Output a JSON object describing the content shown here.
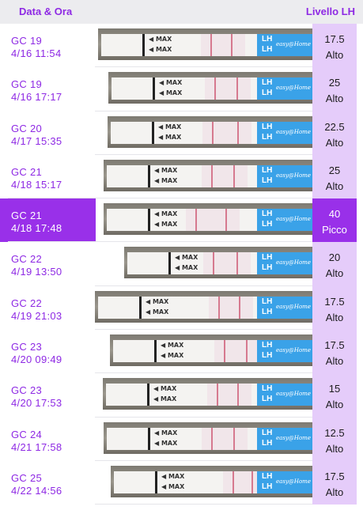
{
  "header": {
    "date_col": "Data & Ora",
    "lh_col": "Livello LH"
  },
  "strip_text": {
    "max": "MAX",
    "lh": "LH",
    "brand": "easy@Home"
  },
  "rows": [
    {
      "cycle_day": "GC 19",
      "datetime": "4/16 11:54",
      "value": "17.5",
      "status": "Alto",
      "selected": false
    },
    {
      "cycle_day": "GC 19",
      "datetime": "4/16 17:17",
      "value": "25",
      "status": "Alto",
      "selected": false
    },
    {
      "cycle_day": "GC 20",
      "datetime": "4/17 15:35",
      "value": "22.5",
      "status": "Alto",
      "selected": false
    },
    {
      "cycle_day": "GC 21",
      "datetime": "4/18 15:17",
      "value": "25",
      "status": "Alto",
      "selected": false
    },
    {
      "cycle_day": "GC 21",
      "datetime": "4/18 17:48",
      "value": "40",
      "status": "Picco",
      "selected": true
    },
    {
      "cycle_day": "GC 22",
      "datetime": "4/19 13:50",
      "value": "20",
      "status": "Alto",
      "selected": false
    },
    {
      "cycle_day": "GC 22",
      "datetime": "4/19 21:03",
      "value": "17.5",
      "status": "Alto",
      "selected": false
    },
    {
      "cycle_day": "GC 23",
      "datetime": "4/20 09:49",
      "value": "17.5",
      "status": "Alto",
      "selected": false
    },
    {
      "cycle_day": "GC 23",
      "datetime": "4/20 17:53",
      "value": "15",
      "status": "Alto",
      "selected": false
    },
    {
      "cycle_day": "GC 24",
      "datetime": "4/21 17:58",
      "value": "12.5",
      "status": "Alto",
      "selected": false
    },
    {
      "cycle_day": "GC 25",
      "datetime": "4/22 14:56",
      "value": "17.5",
      "status": "Alto",
      "selected": false
    }
  ],
  "colors": {
    "accent": "#9930e9",
    "accent_text": "#8e29e4",
    "lh_column_bg": "#e5ccfa",
    "header_bg": "#ececef",
    "strip_blue": "#3aa2e8"
  }
}
